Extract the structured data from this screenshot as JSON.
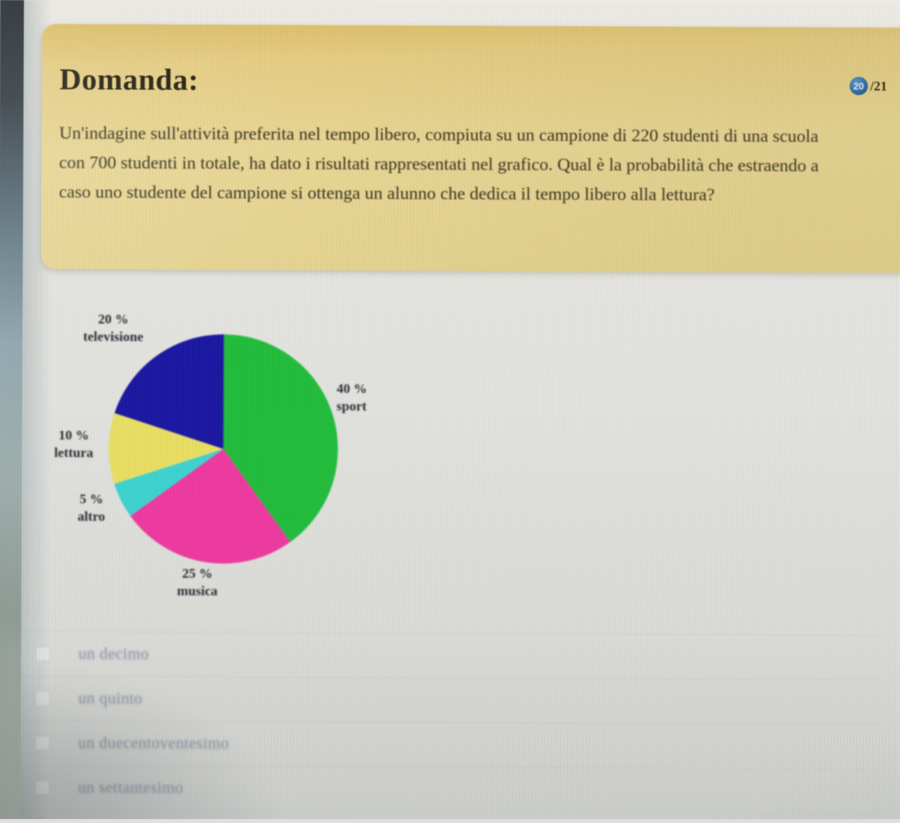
{
  "colors": {
    "card_yellow": "#e6d18c",
    "badge_blue": "#2a6da9"
  },
  "question_card": {
    "title": "Domanda:",
    "progress": {
      "current": "20",
      "total": "/21"
    },
    "text": "Un'indagine sull'attività preferita nel tempo libero, compiuta su un campione di 220 studenti di una scuola con 700 studenti in totale, ha dato i risultati rappresentati nel grafico. Qual è la probabilità che estraendo a caso uno studente del campione si ottenga un alunno che dedica il tempo libero alla lettura?"
  },
  "chart_data": {
    "type": "pie",
    "title": "",
    "start_angle_deg": -90,
    "direction": "clockwise",
    "legend_position": "around-slices",
    "slices": [
      {
        "name": "sport",
        "pct_label": "40 %",
        "value": 40,
        "color": "#22bd3c"
      },
      {
        "name": "musica",
        "pct_label": "25 %",
        "value": 25,
        "color": "#ee3aa0"
      },
      {
        "name": "altro",
        "pct_label": "5 %",
        "value": 5,
        "color": "#3ed3d0"
      },
      {
        "name": "lettura",
        "pct_label": "10 %",
        "value": 10,
        "color": "#e9df63"
      },
      {
        "name": "televisione",
        "pct_label": "20 %",
        "value": 20,
        "color": "#1b18a2"
      }
    ]
  },
  "options": [
    {
      "label": "un decimo"
    },
    {
      "label": "un quinto"
    },
    {
      "label": "un duecentoventesimo"
    },
    {
      "label": "un settantesimo"
    }
  ]
}
